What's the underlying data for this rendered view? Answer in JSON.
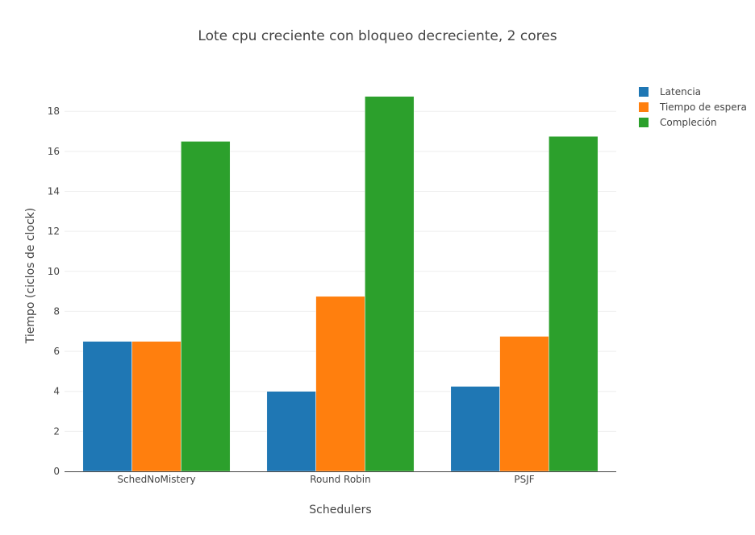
{
  "chart_data": {
    "type": "bar",
    "title": "Lote cpu creciente con bloqueo decreciente, 2 cores",
    "xlabel": "Schedulers",
    "ylabel": "Tiempo (ciclos de clock)",
    "categories": [
      "SchedNoMistery",
      "Round Robin",
      "PSJF"
    ],
    "series": [
      {
        "name": "Latencia",
        "color": "#1f77b4",
        "values": [
          6.5,
          4.0,
          4.25
        ]
      },
      {
        "name": "Tiempo de espera",
        "color": "#ff7f0e",
        "values": [
          6.5,
          8.75,
          6.75
        ]
      },
      {
        "name": "Compleción",
        "color": "#2ca02c",
        "values": [
          16.5,
          18.75,
          16.75
        ]
      }
    ],
    "ylim": [
      0,
      19.74
    ],
    "yticks": [
      0,
      2,
      4,
      6,
      8,
      10,
      12,
      14,
      16,
      18
    ],
    "grid": true,
    "legend": "top-right"
  }
}
